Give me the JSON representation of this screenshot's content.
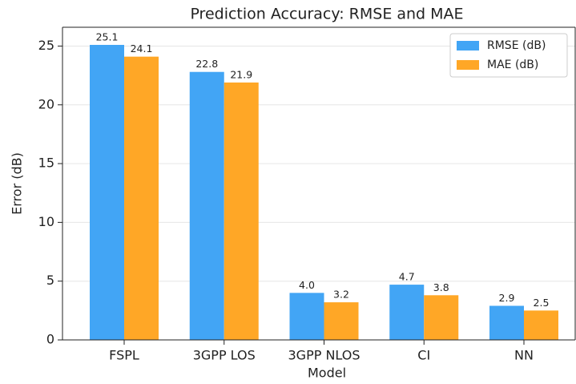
{
  "chart_data": {
    "type": "bar",
    "title": "Prediction Accuracy: RMSE and MAE",
    "x_label": "Model",
    "y_label": "Error (dB)",
    "categories": [
      "FSPL",
      "3GPP LOS",
      "3GPP NLOS",
      "CI",
      "NN"
    ],
    "series": [
      {
        "name": "RMSE (dB)",
        "color": "#42a5f5",
        "values": [
          25.1,
          22.8,
          4.0,
          4.7,
          2.9
        ],
        "value_labels": [
          "25.1",
          "22.8",
          "4.0",
          "4.7",
          "2.9"
        ]
      },
      {
        "name": "MAE (dB)",
        "color": "#ffa726",
        "values": [
          24.1,
          21.9,
          3.2,
          3.8,
          2.5
        ],
        "value_labels": [
          "24.1",
          "21.9",
          "3.2",
          "3.8",
          "2.5"
        ]
      }
    ],
    "ylim": [
      0,
      26.6
    ],
    "yticks": [
      0,
      5,
      10,
      15,
      20,
      25
    ],
    "grid": true,
    "legend": "upper right"
  }
}
